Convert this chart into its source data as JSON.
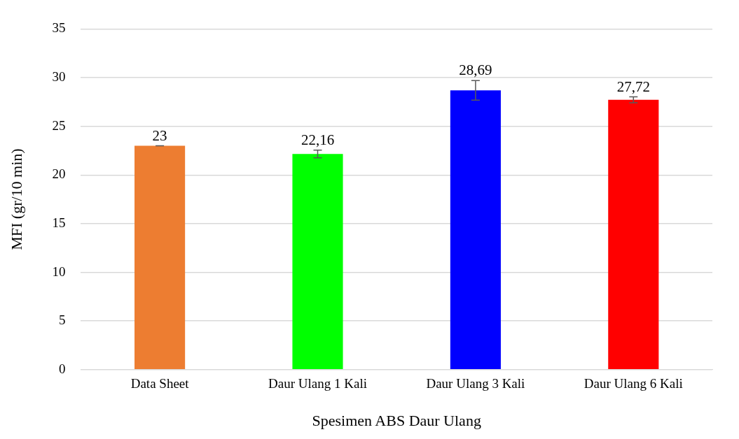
{
  "chart_data": {
    "type": "bar",
    "xlabel": "Spesimen ABS Daur Ulang",
    "ylabel": "MFI (gr/10 min)",
    "categories": [
      "Data Sheet",
      "Daur Ulang 1 Kali",
      "Daur Ulang 3 Kali",
      "Daur Ulang 6 Kali"
    ],
    "values": [
      23,
      22.16,
      28.69,
      27.72
    ],
    "colors": [
      "#ed7d31",
      "#00ff00",
      "#0000ff",
      "#ff0000"
    ],
    "errors": [
      0,
      0.4,
      1.0,
      0.3
    ],
    "value_labels": [
      "23",
      "22,16",
      "28,69",
      "27,72"
    ],
    "ylim": [
      0,
      35
    ],
    "yticks": [
      0,
      5,
      10,
      15,
      20,
      25,
      30,
      35
    ],
    "grid": "y",
    "legend": false
  }
}
